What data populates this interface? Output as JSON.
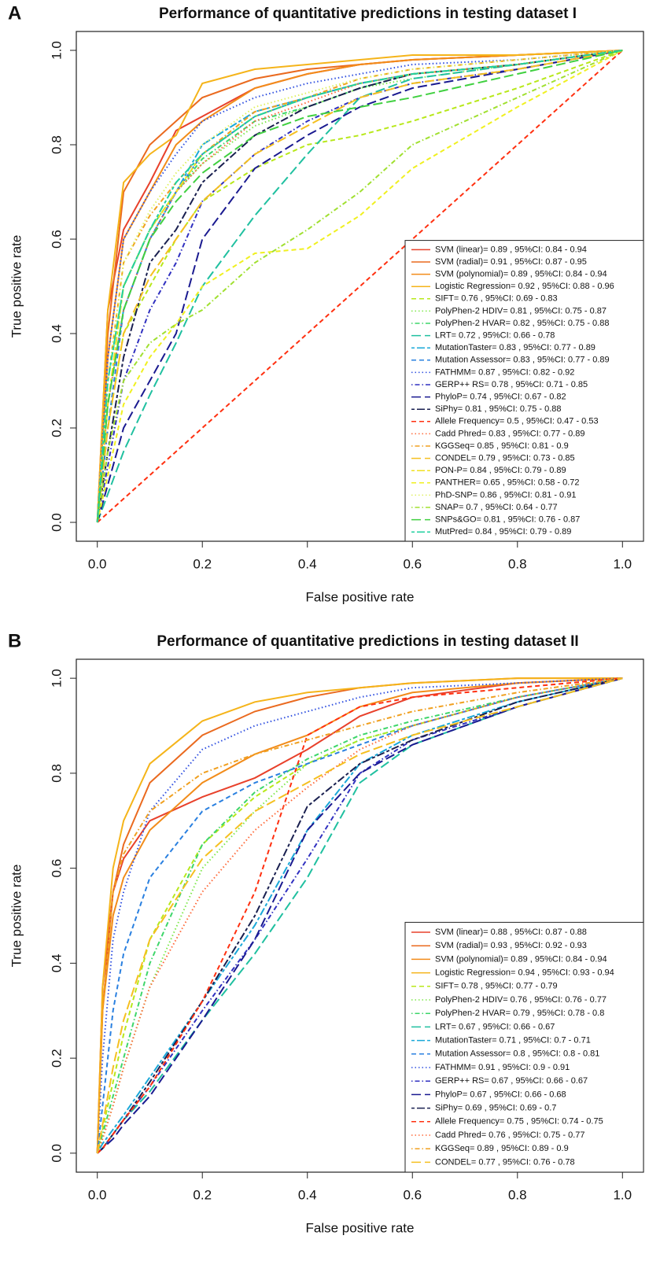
{
  "chart_data": [
    {
      "type": "line",
      "panel_label": "A",
      "title": "Performance of quantitative predictions in testing dataset I",
      "xlabel": "False positive rate",
      "ylabel": "True positive rate",
      "xlim": [
        -0.04,
        1.04
      ],
      "ylim": [
        -0.04,
        1.04
      ],
      "xticks": [
        {
          "value": 0,
          "label": "0.0"
        },
        0.2,
        0.4,
        0.6,
        0.8,
        {
          "value": 1,
          "label": "1.0"
        }
      ],
      "yticks": [
        {
          "value": 0,
          "label": "0.0"
        },
        0.2,
        0.4,
        0.6,
        0.8,
        {
          "value": 1,
          "label": "1.0"
        }
      ],
      "legend": "bottom-right",
      "x": [
        0,
        0.02,
        0.05,
        0.1,
        0.15,
        0.2,
        0.3,
        0.4,
        0.5,
        0.6,
        0.8,
        1
      ],
      "series": [
        {
          "name": "SVM (linear)= 0.89 , 95%CI: 0.84 - 0.94",
          "color": "#e8412b",
          "linestyle": "solid",
          "values": [
            0,
            0.45,
            0.62,
            0.72,
            0.83,
            0.86,
            0.92,
            0.95,
            0.97,
            0.98,
            0.99,
            1
          ]
        },
        {
          "name": "SVM (radial)= 0.91 , 95%CI: 0.87 - 0.95",
          "color": "#ea6a1f",
          "linestyle": "solid",
          "values": [
            0,
            0.4,
            0.7,
            0.8,
            0.85,
            0.9,
            0.94,
            0.96,
            0.97,
            0.98,
            0.99,
            1
          ]
        },
        {
          "name": "SVM (polynomial)= 0.89 , 95%CI: 0.84 - 0.94",
          "color": "#f28c1a",
          "linestyle": "solid",
          "values": [
            0,
            0.35,
            0.6,
            0.7,
            0.8,
            0.85,
            0.92,
            0.95,
            0.97,
            0.98,
            0.99,
            1
          ]
        },
        {
          "name": "Logistic Regression= 0.92 , 95%CI: 0.88 - 0.96",
          "color": "#f5b41a",
          "linestyle": "solid",
          "values": [
            0,
            0.45,
            0.72,
            0.78,
            0.82,
            0.93,
            0.96,
            0.97,
            0.98,
            0.99,
            0.99,
            1
          ]
        },
        {
          "name": "SIFT= 0.76 , 95%CI: 0.69 - 0.83",
          "color": "#b8e81a",
          "linestyle": "dashed",
          "values": [
            0,
            0.2,
            0.4,
            0.5,
            0.6,
            0.68,
            0.75,
            0.8,
            0.82,
            0.85,
            0.92,
            1
          ]
        },
        {
          "name": "PolyPhen-2 HDIV= 0.81 , 95%CI: 0.75 - 0.87",
          "color": "#7ee84a",
          "linestyle": "dotted",
          "values": [
            0,
            0.3,
            0.5,
            0.62,
            0.7,
            0.76,
            0.84,
            0.88,
            0.92,
            0.94,
            0.97,
            1
          ]
        },
        {
          "name": "PolyPhen-2 HVAR= 0.82 , 95%CI: 0.75 - 0.88",
          "color": "#3ed66a",
          "linestyle": "dotdash",
          "values": [
            0,
            0.3,
            0.5,
            0.62,
            0.7,
            0.77,
            0.85,
            0.88,
            0.92,
            0.95,
            0.97,
            1
          ]
        },
        {
          "name": "LRT= 0.72 , 95%CI: 0.66 - 0.78",
          "color": "#20c0a0",
          "linestyle": "longdash",
          "values": [
            0,
            0.06,
            0.15,
            0.27,
            0.38,
            0.5,
            0.65,
            0.78,
            0.9,
            0.94,
            0.97,
            1
          ]
        },
        {
          "name": "MutationTaster= 0.83 , 95%CI: 0.77 - 0.89",
          "color": "#1aa8d8",
          "linestyle": "twodash",
          "values": [
            0,
            0.25,
            0.45,
            0.6,
            0.7,
            0.8,
            0.87,
            0.9,
            0.93,
            0.95,
            0.97,
            1
          ]
        },
        {
          "name": "Mutation Assessor= 0.83 , 95%CI: 0.77 - 0.89",
          "color": "#2a80e0",
          "linestyle": "dashed",
          "values": [
            0,
            0.2,
            0.45,
            0.6,
            0.7,
            0.78,
            0.86,
            0.9,
            0.93,
            0.95,
            0.97,
            1
          ]
        },
        {
          "name": "FATHMM= 0.87 , 95%CI: 0.82 - 0.92",
          "color": "#3050e0",
          "linestyle": "dotted",
          "values": [
            0,
            0.35,
            0.6,
            0.7,
            0.78,
            0.85,
            0.9,
            0.93,
            0.95,
            0.97,
            0.98,
            1
          ]
        },
        {
          "name": "GERP++ RS= 0.78 , 95%CI: 0.71 - 0.85",
          "color": "#3030c0",
          "linestyle": "dotdash",
          "values": [
            0,
            0.12,
            0.3,
            0.45,
            0.55,
            0.68,
            0.78,
            0.85,
            0.9,
            0.93,
            0.96,
            1
          ]
        },
        {
          "name": "PhyloP= 0.74 , 95%CI: 0.67 - 0.82",
          "color": "#1a1a90",
          "linestyle": "longdash",
          "values": [
            0,
            0.08,
            0.2,
            0.3,
            0.4,
            0.6,
            0.75,
            0.82,
            0.88,
            0.92,
            0.96,
            1
          ]
        },
        {
          "name": "SiPhy= 0.81 , 95%CI: 0.75 - 0.88",
          "color": "#1a2050",
          "linestyle": "twodash",
          "values": [
            0,
            0.15,
            0.35,
            0.55,
            0.62,
            0.72,
            0.82,
            0.88,
            0.92,
            0.95,
            0.97,
            1
          ]
        },
        {
          "name": "Allele Frequency= 0.5 , 95%CI: 0.47 - 0.53",
          "color": "#ff3010",
          "linestyle": "dashed",
          "values": [
            0,
            0.02,
            0.05,
            0.1,
            0.15,
            0.2,
            0.3,
            0.4,
            0.5,
            0.6,
            0.8,
            1
          ]
        },
        {
          "name": "Cadd Phred= 0.83 , 95%CI: 0.77 - 0.89",
          "color": "#ff6a3a",
          "linestyle": "dotted",
          "values": [
            0,
            0.25,
            0.45,
            0.6,
            0.7,
            0.76,
            0.85,
            0.89,
            0.93,
            0.95,
            0.97,
            1
          ]
        },
        {
          "name": "KGGSeq= 0.85 , 95%CI: 0.81 - 0.9",
          "color": "#f0a020",
          "linestyle": "dotdash",
          "values": [
            0,
            0.3,
            0.55,
            0.65,
            0.72,
            0.78,
            0.87,
            0.9,
            0.94,
            0.96,
            0.98,
            1
          ]
        },
        {
          "name": "CONDEL= 0.79 , 95%CI: 0.73 - 0.85",
          "color": "#f5c020",
          "linestyle": "longdash",
          "values": [
            0,
            0.2,
            0.4,
            0.52,
            0.6,
            0.68,
            0.78,
            0.84,
            0.9,
            0.93,
            0.96,
            1
          ]
        },
        {
          "name": "PON-P= 0.84 , 95%CI: 0.79 - 0.89",
          "color": "#f0e020",
          "linestyle": "twodash",
          "values": [
            0,
            0.25,
            0.5,
            0.62,
            0.7,
            0.78,
            0.86,
            0.9,
            0.93,
            0.95,
            0.97,
            1
          ]
        },
        {
          "name": "PANTHER= 0.65 , 95%CI: 0.58 - 0.72",
          "color": "#f0f020",
          "linestyle": "dashed",
          "values": [
            0,
            0.1,
            0.25,
            0.35,
            0.42,
            0.5,
            0.57,
            0.58,
            0.65,
            0.75,
            0.88,
            1
          ]
        },
        {
          "name": "PhD-SNP= 0.86 , 95%CI: 0.81 - 0.91",
          "color": "#e0f060",
          "linestyle": "dotted",
          "values": [
            0,
            0.3,
            0.55,
            0.66,
            0.74,
            0.8,
            0.88,
            0.91,
            0.94,
            0.96,
            0.98,
            1
          ]
        },
        {
          "name": "SNAP= 0.7 , 95%CI: 0.64 - 0.77",
          "color": "#a0e030",
          "linestyle": "dotdash",
          "values": [
            0,
            0.15,
            0.3,
            0.38,
            0.42,
            0.45,
            0.55,
            0.62,
            0.7,
            0.8,
            0.9,
            1
          ]
        },
        {
          "name": "SNPs&GO= 0.81 , 95%CI: 0.76 - 0.87",
          "color": "#40d040",
          "linestyle": "longdash",
          "values": [
            0,
            0.25,
            0.45,
            0.6,
            0.68,
            0.74,
            0.82,
            0.86,
            0.88,
            0.9,
            0.95,
            1
          ]
        },
        {
          "name": "MutPred= 0.84 , 95%CI: 0.79 - 0.89",
          "color": "#20d0a0",
          "linestyle": "twodash",
          "values": [
            0,
            0.3,
            0.5,
            0.62,
            0.72,
            0.78,
            0.86,
            0.9,
            0.93,
            0.95,
            0.97,
            1
          ]
        }
      ]
    },
    {
      "type": "line",
      "panel_label": "B",
      "title": "Performance of quantitative predictions in testing dataset II",
      "xlabel": "False positive rate",
      "ylabel": "True positive rate",
      "xlim": [
        -0.04,
        1.04
      ],
      "ylim": [
        -0.04,
        1.04
      ],
      "xticks": [
        {
          "value": 0,
          "label": "0.0"
        },
        0.2,
        0.4,
        0.6,
        0.8,
        {
          "value": 1,
          "label": "1.0"
        }
      ],
      "yticks": [
        {
          "value": 0,
          "label": "0.0"
        },
        0.2,
        0.4,
        0.6,
        0.8,
        {
          "value": 1,
          "label": "1.0"
        }
      ],
      "legend": "bottom-right",
      "x": [
        0,
        0.01,
        0.03,
        0.05,
        0.1,
        0.2,
        0.3,
        0.4,
        0.5,
        0.6,
        0.8,
        1
      ],
      "series": [
        {
          "name": "SVM (linear)= 0.88 , 95%CI: 0.87 - 0.88",
          "color": "#e8412b",
          "linestyle": "solid",
          "values": [
            0,
            0.35,
            0.55,
            0.62,
            0.7,
            0.75,
            0.79,
            0.85,
            0.92,
            0.96,
            0.99,
            1
          ]
        },
        {
          "name": "SVM (radial)= 0.93 , 95%CI: 0.92 - 0.93",
          "color": "#ea6a1f",
          "linestyle": "solid",
          "values": [
            0,
            0.3,
            0.55,
            0.65,
            0.78,
            0.88,
            0.93,
            0.96,
            0.98,
            0.99,
            1,
            1
          ]
        },
        {
          "name": "SVM (polynomial)= 0.89 , 95%CI: 0.84 - 0.94",
          "color": "#f28c1a",
          "linestyle": "solid",
          "values": [
            0,
            0.3,
            0.5,
            0.58,
            0.68,
            0.78,
            0.84,
            0.88,
            0.94,
            0.97,
            0.99,
            1
          ]
        },
        {
          "name": "Logistic Regression= 0.94 , 95%CI: 0.93 - 0.94",
          "color": "#f5b41a",
          "linestyle": "solid",
          "values": [
            0,
            0.35,
            0.6,
            0.7,
            0.82,
            0.91,
            0.95,
            0.97,
            0.98,
            0.99,
            1,
            1
          ]
        },
        {
          "name": "SIFT= 0.78 , 95%CI: 0.77 - 0.79",
          "color": "#b8e81a",
          "linestyle": "dashed",
          "values": [
            0,
            0.05,
            0.15,
            0.25,
            0.45,
            0.65,
            0.75,
            0.82,
            0.87,
            0.9,
            0.96,
            1
          ]
        },
        {
          "name": "PolyPhen-2 HDIV= 0.76 , 95%CI: 0.76 - 0.77",
          "color": "#7ee84a",
          "linestyle": "dotted",
          "values": [
            0,
            0.03,
            0.1,
            0.18,
            0.35,
            0.6,
            0.72,
            0.82,
            0.87,
            0.9,
            0.96,
            1
          ]
        },
        {
          "name": "PolyPhen-2 HVAR= 0.79 , 95%CI: 0.78 - 0.8",
          "color": "#3ed66a",
          "linestyle": "dotdash",
          "values": [
            0,
            0.04,
            0.12,
            0.2,
            0.4,
            0.65,
            0.76,
            0.83,
            0.88,
            0.91,
            0.96,
            1
          ]
        },
        {
          "name": "LRT= 0.67 , 95%CI: 0.66 - 0.67",
          "color": "#20c0a0",
          "linestyle": "longdash",
          "values": [
            0,
            0.01,
            0.04,
            0.07,
            0.13,
            0.28,
            0.42,
            0.58,
            0.78,
            0.86,
            0.94,
            1
          ]
        },
        {
          "name": "MutationTaster= 0.71 , 95%CI: 0.7 - 0.71",
          "color": "#1aa8d8",
          "linestyle": "twodash",
          "values": [
            0,
            0.02,
            0.05,
            0.08,
            0.16,
            0.32,
            0.48,
            0.68,
            0.82,
            0.88,
            0.95,
            1
          ]
        },
        {
          "name": "Mutation Assessor= 0.8 , 95%CI: 0.8 - 0.81",
          "color": "#2a80e0",
          "linestyle": "dashed",
          "values": [
            0,
            0.1,
            0.3,
            0.42,
            0.58,
            0.72,
            0.78,
            0.82,
            0.86,
            0.9,
            0.96,
            1
          ]
        },
        {
          "name": "FATHMM= 0.91 , 95%CI: 0.9 - 0.91",
          "color": "#3050e0",
          "linestyle": "dotted",
          "values": [
            0,
            0.2,
            0.45,
            0.55,
            0.72,
            0.85,
            0.9,
            0.93,
            0.96,
            0.98,
            0.99,
            1
          ]
        },
        {
          "name": "GERP++ RS= 0.67 , 95%CI: 0.66 - 0.67",
          "color": "#3030c0",
          "linestyle": "dotdash",
          "values": [
            0,
            0.01,
            0.04,
            0.07,
            0.14,
            0.3,
            0.45,
            0.62,
            0.8,
            0.87,
            0.94,
            1
          ]
        },
        {
          "name": "PhyloP= 0.67 , 95%CI: 0.66 - 0.68",
          "color": "#1a1a90",
          "linestyle": "longdash",
          "values": [
            0,
            0.01,
            0.03,
            0.06,
            0.12,
            0.28,
            0.45,
            0.68,
            0.8,
            0.86,
            0.94,
            1
          ]
        },
        {
          "name": "SiPhy= 0.69 , 95%CI: 0.69 - 0.7",
          "color": "#1a2050",
          "linestyle": "twodash",
          "values": [
            0,
            0.01,
            0.04,
            0.07,
            0.15,
            0.32,
            0.5,
            0.73,
            0.82,
            0.87,
            0.95,
            1
          ]
        },
        {
          "name": "Allele Frequency= 0.75 , 95%CI: 0.74 - 0.75",
          "color": "#ff3010",
          "linestyle": "dashed",
          "values": [
            0,
            0.01,
            0.04,
            0.07,
            0.14,
            0.32,
            0.55,
            0.88,
            0.94,
            0.96,
            0.98,
            1
          ]
        },
        {
          "name": "Cadd Phred= 0.76 , 95%CI: 0.75 - 0.77",
          "color": "#ff6a3a",
          "linestyle": "dotted",
          "values": [
            0,
            0.03,
            0.1,
            0.18,
            0.35,
            0.55,
            0.68,
            0.77,
            0.85,
            0.9,
            0.96,
            1
          ]
        },
        {
          "name": "KGGSeq= 0.89 , 95%CI: 0.89 - 0.9",
          "color": "#f0a020",
          "linestyle": "dotdash",
          "values": [
            0,
            0.3,
            0.55,
            0.63,
            0.72,
            0.8,
            0.84,
            0.87,
            0.9,
            0.93,
            0.97,
            1
          ]
        },
        {
          "name": "CONDEL= 0.77 , 95%CI: 0.76 - 0.78",
          "color": "#f5c020",
          "linestyle": "longdash",
          "values": [
            0,
            0.06,
            0.18,
            0.28,
            0.45,
            0.62,
            0.72,
            0.78,
            0.84,
            0.88,
            0.94,
            1
          ]
        }
      ]
    }
  ]
}
